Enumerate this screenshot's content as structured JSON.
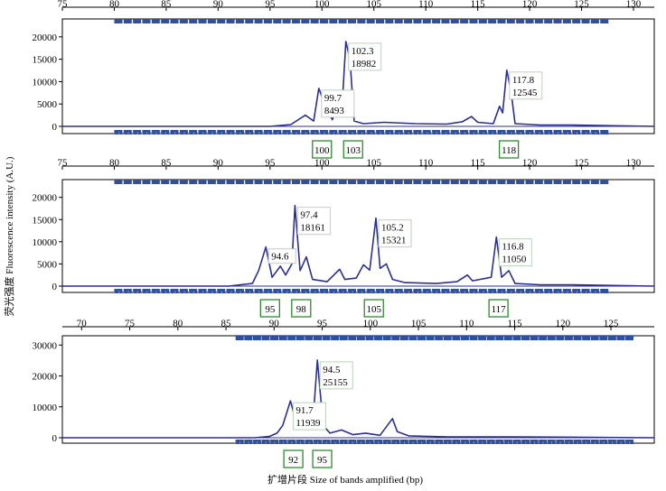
{
  "chart_data": [
    {
      "type": "line",
      "title": "",
      "xlim": [
        75,
        132
      ],
      "ylim": [
        -1500,
        24000
      ],
      "x_ticks": [
        "75",
        "80",
        "85",
        "90",
        "95",
        "100",
        "105",
        "110",
        "115",
        "120",
        "125",
        "130"
      ],
      "y_ticks": [
        "0",
        "5000",
        "10000",
        "15000",
        "20000"
      ],
      "series": [
        {
          "color": "#2b2f8f",
          "points": [
            [
              75,
              0
            ],
            [
              95,
              0
            ],
            [
              97,
              400
            ],
            [
              98.4,
              2500
            ],
            [
              99.2,
              1200
            ],
            [
              99.7,
              8493
            ],
            [
              100.4,
              4000
            ],
            [
              101,
              1500
            ],
            [
              101.6,
              5000
            ],
            [
              102,
              7000
            ],
            [
              102.3,
              18982
            ],
            [
              102.7,
              15000
            ],
            [
              103.1,
              1200
            ],
            [
              104,
              600
            ],
            [
              106,
              900
            ],
            [
              109,
              600
            ],
            [
              112,
              500
            ],
            [
              113.5,
              1000
            ],
            [
              114.4,
              2200
            ],
            [
              115,
              900
            ],
            [
              116.5,
              600
            ],
            [
              117.1,
              4500
            ],
            [
              117.4,
              3000
            ],
            [
              117.8,
              12545
            ],
            [
              118.2,
              8000
            ],
            [
              118.6,
              600
            ],
            [
              121,
              300
            ],
            [
              124,
              300
            ],
            [
              132,
              0
            ]
          ]
        }
      ],
      "annotations": [
        {
          "x": 99.7,
          "label": "99.7",
          "value": "8493"
        },
        {
          "x": 102.3,
          "label": "102.3",
          "value": "18982"
        },
        {
          "x": 117.8,
          "label": "117.8",
          "value": "12545"
        }
      ],
      "bins": [
        "100",
        "103",
        "118"
      ],
      "bin_x": [
        100,
        103,
        118
      ]
    },
    {
      "type": "line",
      "title": "",
      "xlim": [
        75,
        132
      ],
      "ylim": [
        -1500,
        24000
      ],
      "x_ticks": [
        "75",
        "80",
        "85",
        "90",
        "95",
        "100",
        "105",
        "110",
        "115",
        "120",
        "125",
        "130"
      ],
      "y_ticks": [
        "0",
        "5000",
        "10000",
        "15000",
        "20000"
      ],
      "series": [
        {
          "color": "#2b2f8f",
          "points": [
            [
              75,
              0
            ],
            [
              91,
              0
            ],
            [
              93.3,
              600
            ],
            [
              93.9,
              3500
            ],
            [
              94.6,
              8800
            ],
            [
              95.2,
              2000
            ],
            [
              96,
              4500
            ],
            [
              96.5,
              2500
            ],
            [
              97.1,
              5000
            ],
            [
              97.4,
              18161
            ],
            [
              97.9,
              3500
            ],
            [
              98.5,
              6600
            ],
            [
              99.1,
              1500
            ],
            [
              100.5,
              1000
            ],
            [
              101.7,
              3800
            ],
            [
              102.2,
              1500
            ],
            [
              103.3,
              1800
            ],
            [
              104,
              4800
            ],
            [
              104.6,
              3600
            ],
            [
              105.2,
              15321
            ],
            [
              105.6,
              4000
            ],
            [
              106.2,
              5000
            ],
            [
              106.8,
              1500
            ],
            [
              108,
              800
            ],
            [
              111,
              600
            ],
            [
              113,
              1000
            ],
            [
              114,
              2500
            ],
            [
              114.5,
              1200
            ],
            [
              116.3,
              2000
            ],
            [
              116.8,
              11050
            ],
            [
              117.3,
              2000
            ],
            [
              118,
              3500
            ],
            [
              118.6,
              600
            ],
            [
              121,
              300
            ],
            [
              124,
              300
            ],
            [
              132,
              0
            ]
          ]
        }
      ],
      "annotations": [
        {
          "x": 94.6,
          "label": "94.6",
          "value": ""
        },
        {
          "x": 97.4,
          "label": "97.4",
          "value": "18161"
        },
        {
          "x": 105.2,
          "label": "105.2",
          "value": "15321"
        },
        {
          "x": 116.8,
          "label": "116.8",
          "value": "11050"
        }
      ],
      "bins": [
        "95",
        "98",
        "105",
        "117"
      ],
      "bin_x": [
        95,
        98,
        105,
        117
      ]
    },
    {
      "type": "line",
      "title": "",
      "xlim": [
        68,
        129.5
      ],
      "ylim": [
        -2200,
        33000
      ],
      "x_ticks": [
        "70",
        "75",
        "80",
        "85",
        "90",
        "95",
        "100",
        "105",
        "110",
        "115",
        "120",
        "125"
      ],
      "y_ticks": [
        "0",
        "10000",
        "20000",
        "30000"
      ],
      "series": [
        {
          "color": "#2b2f8f",
          "points": [
            [
              68,
              0
            ],
            [
              88,
              0
            ],
            [
              89.5,
              400
            ],
            [
              90.3,
              1500
            ],
            [
              90.9,
              4000
            ],
            [
              91.7,
              11939
            ],
            [
              92.3,
              5000
            ],
            [
              93,
              3000
            ],
            [
              93.6,
              5500
            ],
            [
              94,
              3500
            ],
            [
              94.5,
              25155
            ],
            [
              95.1,
              4000
            ],
            [
              95.8,
              1500
            ],
            [
              97,
              2500
            ],
            [
              98.2,
              1000
            ],
            [
              99.5,
              1500
            ],
            [
              101,
              800
            ],
            [
              102.3,
              6200
            ],
            [
              102.8,
              2000
            ],
            [
              104,
              600
            ],
            [
              108,
              300
            ],
            [
              115,
              300
            ],
            [
              129.5,
              0
            ]
          ]
        }
      ],
      "annotations": [
        {
          "x": 91.7,
          "label": "91.7",
          "value": "11939"
        },
        {
          "x": 94.5,
          "label": "94.5",
          "value": "25155"
        }
      ],
      "bins": [
        "92",
        "95"
      ],
      "bin_x": [
        92,
        95
      ]
    }
  ],
  "labels": {
    "ylabel": "荧光强度 Fluorescence intensity (A.U.)",
    "xlabel": "扩增片段 Size of bands amplified (bp)"
  },
  "colors": {
    "trace": "#2b2f8f",
    "bin_marker": "#2f4fa0",
    "bin_box": "#2e8b2e",
    "ann_box": "#b9d3b9"
  }
}
